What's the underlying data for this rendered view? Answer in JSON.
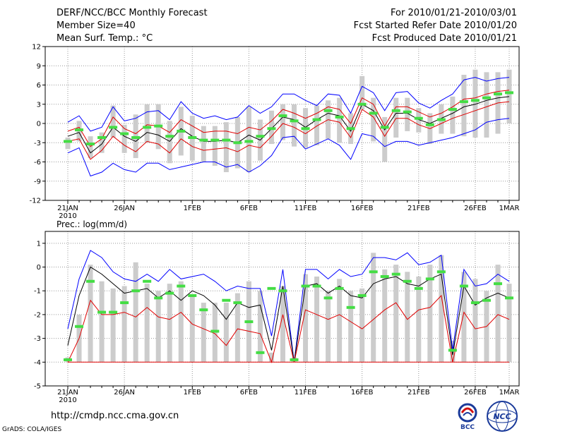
{
  "header": {
    "title": "DERF/NCC/BCC Monthly Forecast",
    "member_size": "Member Size=40",
    "variable": "Mean Surf. Temp.: °C",
    "period": "For 2010/01/21-2010/03/01",
    "started": "Fcst Started Refer Date 2010/01/20",
    "produced": "Fcst Produced Date 2010/01/21"
  },
  "footer": {
    "url": "http://cmdp.ncc.cma.gov.cn",
    "credit": "GrADS: COLA/IGES",
    "logo_bcc": "BCC",
    "logo_ncc": "NCC"
  },
  "colors": {
    "ensemble_max_min": "#0000ff",
    "spread": "#e00000",
    "mean": "#000000",
    "observed": "#44dd44",
    "box": "#cccccc",
    "grid": "#999999"
  },
  "chart_data": [
    {
      "type": "line",
      "title": "Mean Surf. Temp.: °C",
      "ylim": [
        -12,
        12
      ],
      "yticks": [
        -12,
        -9,
        -6,
        -3,
        0,
        3,
        6,
        9,
        12
      ],
      "xtick_labels": [
        {
          "day": 0,
          "label": "21JAN",
          "sub": "2010"
        },
        {
          "day": 5,
          "label": "26JAN"
        },
        {
          "day": 11,
          "label": "1FEB"
        },
        {
          "day": 16,
          "label": "6FEB"
        },
        {
          "day": 21,
          "label": "11FEB"
        },
        {
          "day": 26,
          "label": "16FEB"
        },
        {
          "day": 31,
          "label": "21FEB"
        },
        {
          "day": 36,
          "label": "26FEB"
        },
        {
          "day": 39,
          "label": "1MAR"
        }
      ],
      "series": [
        {
          "name": "ensemble_max",
          "color": "#0000ff",
          "values": [
            0.2,
            1.2,
            -1.2,
            -0.6,
            2.6,
            0.4,
            0.8,
            1.8,
            2.0,
            0.6,
            3.4,
            1.6,
            0.8,
            1.2,
            0.6,
            1.0,
            2.8,
            1.6,
            2.6,
            4.6,
            4.6,
            3.6,
            2.8,
            4.6,
            4.4,
            1.6,
            5.8,
            4.8,
            2.0,
            4.8,
            5.0,
            3.2,
            2.4,
            3.6,
            4.6,
            6.8,
            7.2,
            6.6,
            7.0,
            7.2
          ]
        },
        {
          "name": "spread_upper",
          "color": "#e00000",
          "values": [
            -1.2,
            -0.6,
            -3.6,
            -2.4,
            1.0,
            -0.8,
            -1.6,
            -0.2,
            -0.4,
            -1.4,
            0.6,
            -0.4,
            -1.4,
            -1.2,
            -1.2,
            -1.6,
            -0.6,
            -1.0,
            0.4,
            2.2,
            1.6,
            0.8,
            1.6,
            2.6,
            2.2,
            0.0,
            4.0,
            3.0,
            -0.4,
            2.6,
            2.6,
            1.8,
            1.0,
            1.6,
            2.6,
            3.8,
            4.0,
            4.6,
            5.0,
            5.2
          ]
        },
        {
          "name": "ensemble_mean",
          "color": "#000000",
          "values": [
            -2.0,
            -1.4,
            -4.6,
            -3.2,
            -0.6,
            -2.0,
            -2.8,
            -1.4,
            -1.8,
            -2.8,
            -0.8,
            -2.0,
            -2.8,
            -2.8,
            -2.6,
            -3.0,
            -1.8,
            -2.6,
            -0.8,
            1.0,
            0.6,
            -0.6,
            0.6,
            1.6,
            1.2,
            -1.2,
            3.0,
            2.0,
            -1.0,
            1.6,
            1.6,
            0.6,
            0.0,
            0.8,
            1.6,
            2.6,
            3.0,
            3.6,
            4.0,
            4.2
          ]
        },
        {
          "name": "spread_lower",
          "color": "#e00000",
          "values": [
            -2.8,
            -2.4,
            -5.6,
            -4.2,
            -2.0,
            -3.4,
            -4.4,
            -2.8,
            -3.2,
            -4.6,
            -2.4,
            -3.6,
            -4.2,
            -4.0,
            -3.8,
            -4.4,
            -3.4,
            -3.8,
            -2.0,
            0.0,
            -0.6,
            -1.6,
            -0.4,
            0.6,
            0.2,
            -2.2,
            2.2,
            1.0,
            -2.0,
            0.8,
            0.8,
            -0.2,
            -0.8,
            0.0,
            0.8,
            1.4,
            2.0,
            2.6,
            3.2,
            3.4
          ]
        },
        {
          "name": "ensemble_min",
          "color": "#0000ff",
          "values": [
            -4.6,
            -3.8,
            -8.2,
            -7.6,
            -6.2,
            -7.2,
            -7.6,
            -6.2,
            -6.2,
            -7.2,
            -6.8,
            -6.4,
            -6.0,
            -6.0,
            -6.8,
            -6.4,
            -7.6,
            -6.6,
            -5.0,
            -2.2,
            -2.0,
            -4.0,
            -3.2,
            -2.4,
            -3.4,
            -5.6,
            -1.6,
            -2.0,
            -3.6,
            -2.8,
            -2.8,
            -3.4,
            -3.0,
            -2.6,
            -2.2,
            -1.6,
            -1.0,
            0.2,
            0.6,
            0.8
          ]
        }
      ],
      "boxes": {
        "upper": [
          -2.2,
          0.4,
          -2.0,
          -1.4,
          2.8,
          -0.2,
          1.4,
          3.0,
          3.0,
          0.4,
          2.6,
          1.2,
          -0.4,
          -0.4,
          0.2,
          1.0,
          2.6,
          0.6,
          2.0,
          3.0,
          3.0,
          2.4,
          2.8,
          3.6,
          4.0,
          1.6,
          7.4,
          4.0,
          1.0,
          4.0,
          4.0,
          2.4,
          1.6,
          3.0,
          4.2,
          7.6,
          8.4,
          8.0,
          8.0,
          8.4
        ],
        "lower": [
          -4.0,
          -2.8,
          -5.4,
          -4.6,
          -2.2,
          -4.6,
          -5.4,
          -3.0,
          -4.0,
          -6.2,
          -5.0,
          -5.8,
          -6.0,
          -6.6,
          -7.6,
          -7.0,
          -7.6,
          -5.8,
          -3.2,
          -2.6,
          -3.6,
          -3.8,
          -3.4,
          -2.4,
          -3.0,
          -3.2,
          2.2,
          -2.8,
          -6.0,
          -2.2,
          -1.2,
          -1.4,
          -3.2,
          -1.6,
          -1.6,
          -2.0,
          -2.2,
          -2.2,
          -1.6,
          0.0
        ]
      },
      "observed": [
        -2.8,
        -1.0,
        -3.2,
        -2.2,
        -0.6,
        -1.6,
        -2.2,
        -0.6,
        -0.4,
        -2.0,
        -1.2,
        -2.2,
        -2.6,
        -2.6,
        -2.6,
        -3.0,
        -2.8,
        -2.0,
        -0.8,
        1.2,
        0.4,
        -0.8,
        0.6,
        2.0,
        1.0,
        -0.8,
        3.0,
        1.6,
        -0.6,
        2.0,
        1.8,
        0.8,
        -0.2,
        0.6,
        2.2,
        3.4,
        3.6,
        4.0,
        4.6,
        4.8
      ]
    },
    {
      "type": "line",
      "title": "Prec.: log(mm/d)",
      "ylim": [
        -5,
        1.5
      ],
      "yticks": [
        -5,
        -4,
        -3,
        -2,
        -1,
        0,
        1
      ],
      "xtick_labels": [
        {
          "day": 0,
          "label": "21JAN",
          "sub": "2010"
        },
        {
          "day": 5,
          "label": "26JAN"
        },
        {
          "day": 11,
          "label": "1FEB"
        },
        {
          "day": 16,
          "label": "6FEB"
        },
        {
          "day": 21,
          "label": "11FEB"
        },
        {
          "day": 26,
          "label": "16FEB"
        },
        {
          "day": 31,
          "label": "21FEB"
        },
        {
          "day": 36,
          "label": "26FEB"
        },
        {
          "day": 39,
          "label": "1MAR"
        }
      ],
      "series": [
        {
          "name": "ensemble_max",
          "color": "#0000ff",
          "values": [
            -2.6,
            -0.5,
            0.7,
            0.4,
            -0.2,
            -0.5,
            -0.6,
            -0.3,
            -0.6,
            -0.1,
            -0.5,
            -0.4,
            -0.3,
            -0.6,
            -1.0,
            -0.8,
            -0.9,
            -0.9,
            -2.9,
            -0.1,
            -4.0,
            -0.1,
            -0.1,
            -0.5,
            -0.1,
            -0.4,
            -0.3,
            0.4,
            0.4,
            0.3,
            0.6,
            0.1,
            0.2,
            0.5,
            -3.5,
            -0.1,
            -0.8,
            -0.7,
            -0.3,
            -0.6
          ]
        },
        {
          "name": "ensemble_mean",
          "color": "#000000",
          "values": [
            -3.3,
            -1.2,
            0.0,
            -0.3,
            -0.7,
            -1.1,
            -1.0,
            -0.9,
            -1.3,
            -1.0,
            -1.4,
            -1.0,
            -1.2,
            -1.6,
            -2.2,
            -1.5,
            -1.7,
            -1.6,
            -3.5,
            -0.8,
            -4.0,
            -0.8,
            -0.7,
            -1.1,
            -0.8,
            -1.2,
            -1.3,
            -0.7,
            -0.5,
            -0.4,
            -0.7,
            -0.8,
            -0.5,
            -0.3,
            -3.7,
            -0.8,
            -1.6,
            -1.3,
            -1.1,
            -1.3
          ]
        },
        {
          "name": "spread_lower",
          "color": "#e00000",
          "values": [
            -4.0,
            -3.0,
            -1.4,
            -2.0,
            -2.0,
            -1.9,
            -2.1,
            -1.7,
            -2.1,
            -2.2,
            -1.9,
            -2.4,
            -2.6,
            -2.8,
            -3.3,
            -2.6,
            -2.7,
            -2.8,
            -4.0,
            -2.0,
            -4.0,
            -1.8,
            -2.0,
            -2.2,
            -2.0,
            -2.3,
            -2.6,
            -2.2,
            -1.8,
            -1.5,
            -2.2,
            -1.8,
            -1.7,
            -1.2,
            -4.0,
            -1.9,
            -2.6,
            -2.5,
            -2.0,
            -2.2
          ]
        },
        {
          "name": "floor",
          "color": "#e00000",
          "values": [
            -4.0,
            -4.0,
            -4.0,
            -4.0,
            -4.0,
            -4.0,
            -4.0,
            -4.0,
            -4.0,
            -4.0,
            -4.0,
            -4.0,
            -4.0,
            -4.0,
            -4.0,
            -4.0,
            -4.0,
            -4.0,
            -4.0,
            -4.0,
            -4.0,
            -4.0,
            -4.0,
            -4.0,
            -4.0,
            -4.0,
            -4.0,
            -4.0,
            -4.0,
            -4.0,
            -4.0,
            -4.0,
            -4.0,
            -4.0,
            -4.0,
            -4.0,
            -4.0,
            -4.0,
            -4.0,
            -4.0
          ]
        }
      ],
      "boxes": {
        "upper": [
          -3.8,
          -2.0,
          0.1,
          -0.6,
          -0.9,
          -0.8,
          0.2,
          -0.7,
          -1.0,
          -0.7,
          -0.6,
          -1.2,
          -1.5,
          -1.5,
          -1.5,
          -1.1,
          -0.6,
          -1.0,
          -3.6,
          -0.8,
          -3.8,
          -0.3,
          -0.4,
          -1.0,
          -0.5,
          -1.0,
          -0.9,
          0.6,
          -0.1,
          0.1,
          -0.2,
          -0.4,
          0.1,
          0.5,
          -3.1,
          -0.2,
          -0.5,
          -1.0,
          0.1,
          -0.7
        ],
        "lower": [
          -4.0,
          -4.0,
          -4.0,
          -4.0,
          -4.0,
          -4.0,
          -4.0,
          -4.0,
          -4.0,
          -4.0,
          -4.0,
          -4.0,
          -4.0,
          -4.0,
          -4.0,
          -4.0,
          -4.0,
          -4.0,
          -4.0,
          -4.0,
          -4.0,
          -4.0,
          -4.0,
          -4.0,
          -4.0,
          -4.0,
          -4.0,
          -4.0,
          -4.0,
          -4.0,
          -4.0,
          -4.0,
          -4.0,
          -4.0,
          -4.0,
          -4.0,
          -4.0,
          -4.0,
          -4.0,
          -4.0
        ]
      },
      "observed": [
        -3.9,
        -2.5,
        -0.6,
        -1.9,
        -1.9,
        -1.5,
        -1.0,
        -0.6,
        -1.3,
        -1.1,
        -0.8,
        -1.2,
        -1.8,
        -2.7,
        -1.4,
        -1.5,
        -2.3,
        -3.6,
        -0.9,
        -1.0,
        -3.9,
        -0.8,
        -0.8,
        -1.3,
        -0.9,
        -1.7,
        -1.2,
        -0.2,
        -0.4,
        -0.3,
        -0.6,
        -0.9,
        -0.5,
        -0.2,
        -3.5,
        -0.8,
        -1.5,
        -1.4,
        -0.7,
        -1.3
      ]
    }
  ]
}
